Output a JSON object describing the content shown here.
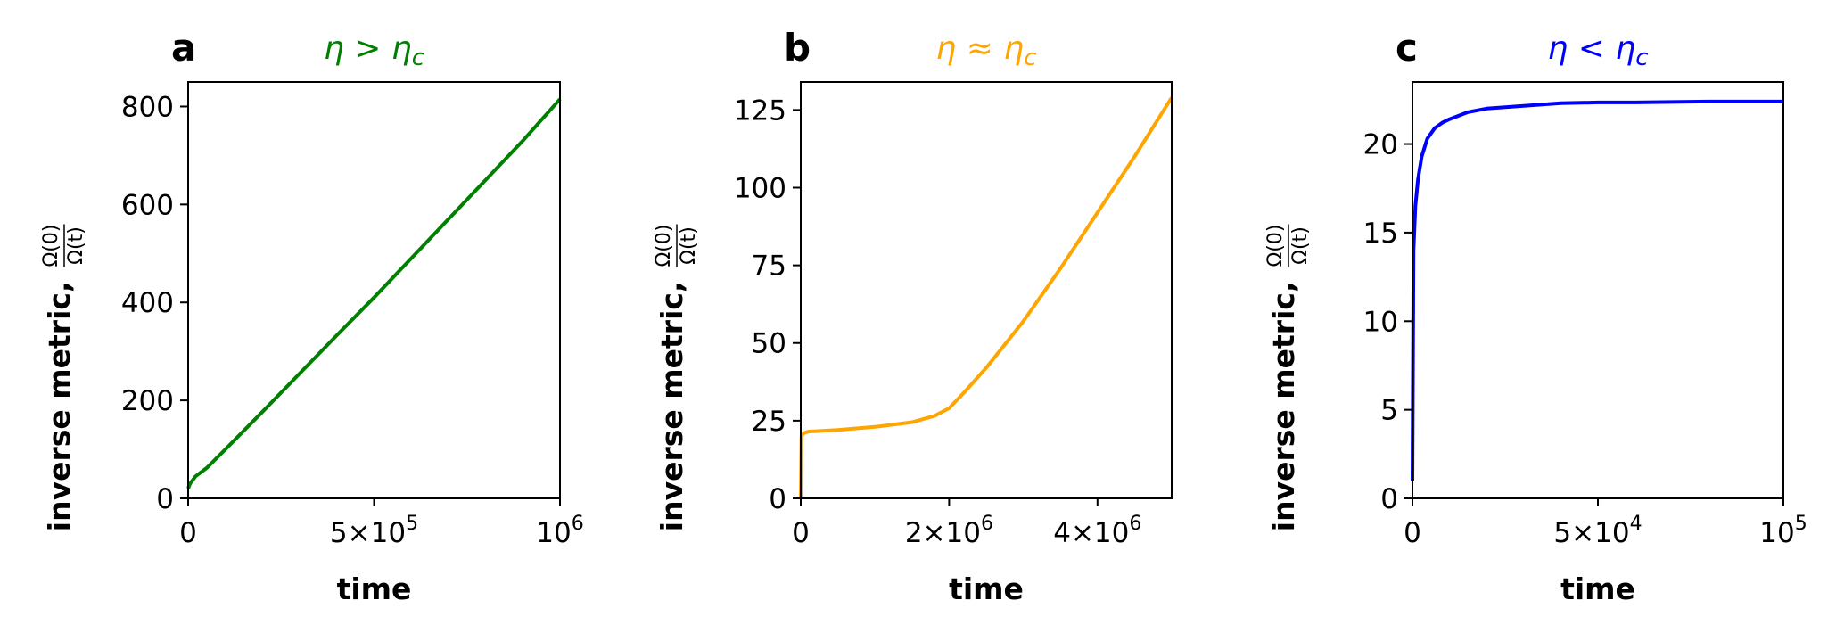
{
  "chart_data": [
    {
      "type": "line",
      "panel_letter": "a",
      "title": "η > η_c",
      "title_parts": [
        "η > η",
        "c"
      ],
      "color": "#008000",
      "xlabel": "time",
      "ylabel": "inverse metric,",
      "ylabel_fraction": {
        "numerator": "Ω(0)",
        "denominator": "Ω(t)"
      },
      "xlim": [
        0,
        1000000
      ],
      "ylim": [
        0,
        850
      ],
      "x_ticks": [
        {
          "value": 0,
          "base": "0",
          "exp": ""
        },
        {
          "value": 500000,
          "base": "5×10",
          "exp": "5"
        },
        {
          "value": 1000000,
          "base": "10",
          "exp": "6"
        }
      ],
      "y_ticks": [
        {
          "value": 0,
          "label": "0"
        },
        {
          "value": 200,
          "label": "200"
        },
        {
          "value": 400,
          "label": "400"
        },
        {
          "value": 600,
          "label": "600"
        },
        {
          "value": 800,
          "label": "800"
        }
      ],
      "series": [
        {
          "x": [
            0,
            5000,
            20000,
            50000,
            100000,
            200000,
            300000,
            400000,
            500000,
            600000,
            700000,
            800000,
            900000,
            1000000
          ],
          "y": [
            20,
            30,
            45,
            62,
            100,
            177,
            255,
            333,
            410,
            490,
            570,
            650,
            730,
            815
          ]
        }
      ]
    },
    {
      "type": "line",
      "panel_letter": "b",
      "title": "η ≈ η_c",
      "title_parts": [
        "η ≈ η",
        "c"
      ],
      "color": "#FFA500",
      "xlabel": "time",
      "ylabel": "inverse metric,",
      "ylabel_fraction": {
        "numerator": "Ω(0)",
        "denominator": "Ω(t)"
      },
      "xlim": [
        0,
        5000000
      ],
      "ylim": [
        0,
        134
      ],
      "x_ticks": [
        {
          "value": 0,
          "base": "0",
          "exp": ""
        },
        {
          "value": 2000000,
          "base": "2×10",
          "exp": "6"
        },
        {
          "value": 4000000,
          "base": "4×10",
          "exp": "6"
        }
      ],
      "y_ticks": [
        {
          "value": 0,
          "label": "0"
        },
        {
          "value": 25,
          "label": "25"
        },
        {
          "value": 50,
          "label": "50"
        },
        {
          "value": 75,
          "label": "75"
        },
        {
          "value": 100,
          "label": "100"
        },
        {
          "value": 125,
          "label": "125"
        }
      ],
      "series": [
        {
          "x": [
            0,
            10000,
            40000,
            100000,
            500000,
            1000000,
            1500000,
            1800000,
            2000000,
            2200000,
            2500000,
            3000000,
            3500000,
            4000000,
            4500000,
            5000000
          ],
          "y": [
            0,
            20,
            21,
            21.5,
            22,
            23,
            24.5,
            26.5,
            29,
            34,
            42,
            57,
            74,
            92,
            110,
            129
          ]
        }
      ]
    },
    {
      "type": "line",
      "panel_letter": "c",
      "title": "η < η_c",
      "title_parts": [
        "η < η",
        "c"
      ],
      "color": "#0000FF",
      "xlabel": "time",
      "ylabel": "inverse metric,",
      "ylabel_fraction": {
        "numerator": "Ω(0)",
        "denominator": "Ω(t)"
      },
      "xlim": [
        0,
        100000
      ],
      "ylim": [
        0,
        23.5
      ],
      "x_ticks": [
        {
          "value": 0,
          "base": "0",
          "exp": ""
        },
        {
          "value": 50000,
          "base": "5×10",
          "exp": "4"
        },
        {
          "value": 100000,
          "base": "10",
          "exp": "5"
        }
      ],
      "y_ticks": [
        {
          "value": 0,
          "label": "0"
        },
        {
          "value": 5,
          "label": "5"
        },
        {
          "value": 10,
          "label": "10"
        },
        {
          "value": 15,
          "label": "15"
        },
        {
          "value": 20,
          "label": "20"
        }
      ],
      "series": [
        {
          "x": [
            0,
            300,
            800,
            1500,
            2500,
            4000,
            6000,
            8000,
            10000,
            15000,
            20000,
            30000,
            40000,
            50000,
            60000,
            80000,
            100000
          ],
          "y": [
            1,
            14,
            16.5,
            18,
            19.3,
            20.3,
            20.9,
            21.2,
            21.4,
            21.8,
            22.0,
            22.15,
            22.3,
            22.35,
            22.35,
            22.4,
            22.4
          ]
        }
      ]
    }
  ]
}
